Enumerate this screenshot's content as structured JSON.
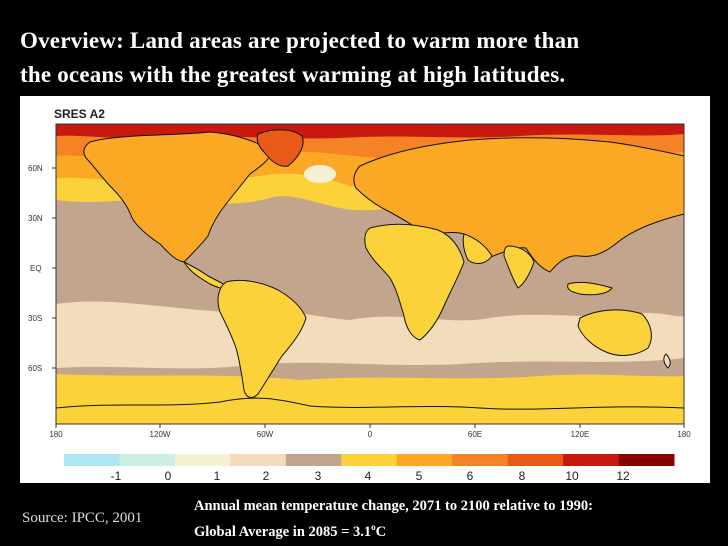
{
  "slide": {
    "title_line1": "Overview: Land areas are projected to warm more than",
    "title_line2": "the oceans with the greatest warming at high latitudes."
  },
  "map": {
    "scenario_label": "SRES A2",
    "lat_labels": [
      "60N",
      "30N",
      "EQ",
      "30S",
      "60S"
    ],
    "lon_labels": [
      "180",
      "120W",
      "60W",
      "0",
      "60E",
      "120E",
      "180"
    ]
  },
  "colorbar": {
    "ticks": [
      "-1",
      "0",
      "1",
      "2",
      "3",
      "4",
      "5",
      "6",
      "8",
      "10",
      "12"
    ],
    "colors": [
      "#aee6f4",
      "#cdeee2",
      "#f6f0d4",
      "#f3dcbc",
      "#c2a58c",
      "#fbd23a",
      "#fba824",
      "#f58224",
      "#e85a18",
      "#c8190e",
      "#880000"
    ]
  },
  "footer": {
    "source": "Source: IPCC, 2001",
    "caption_line1": "Annual mean temperature change, 2071 to 2100 relative to 1990:",
    "caption_line2_prefix": "Global Average in 2085  = 3.1",
    "degree_sup": "o",
    "unit": "C"
  }
}
